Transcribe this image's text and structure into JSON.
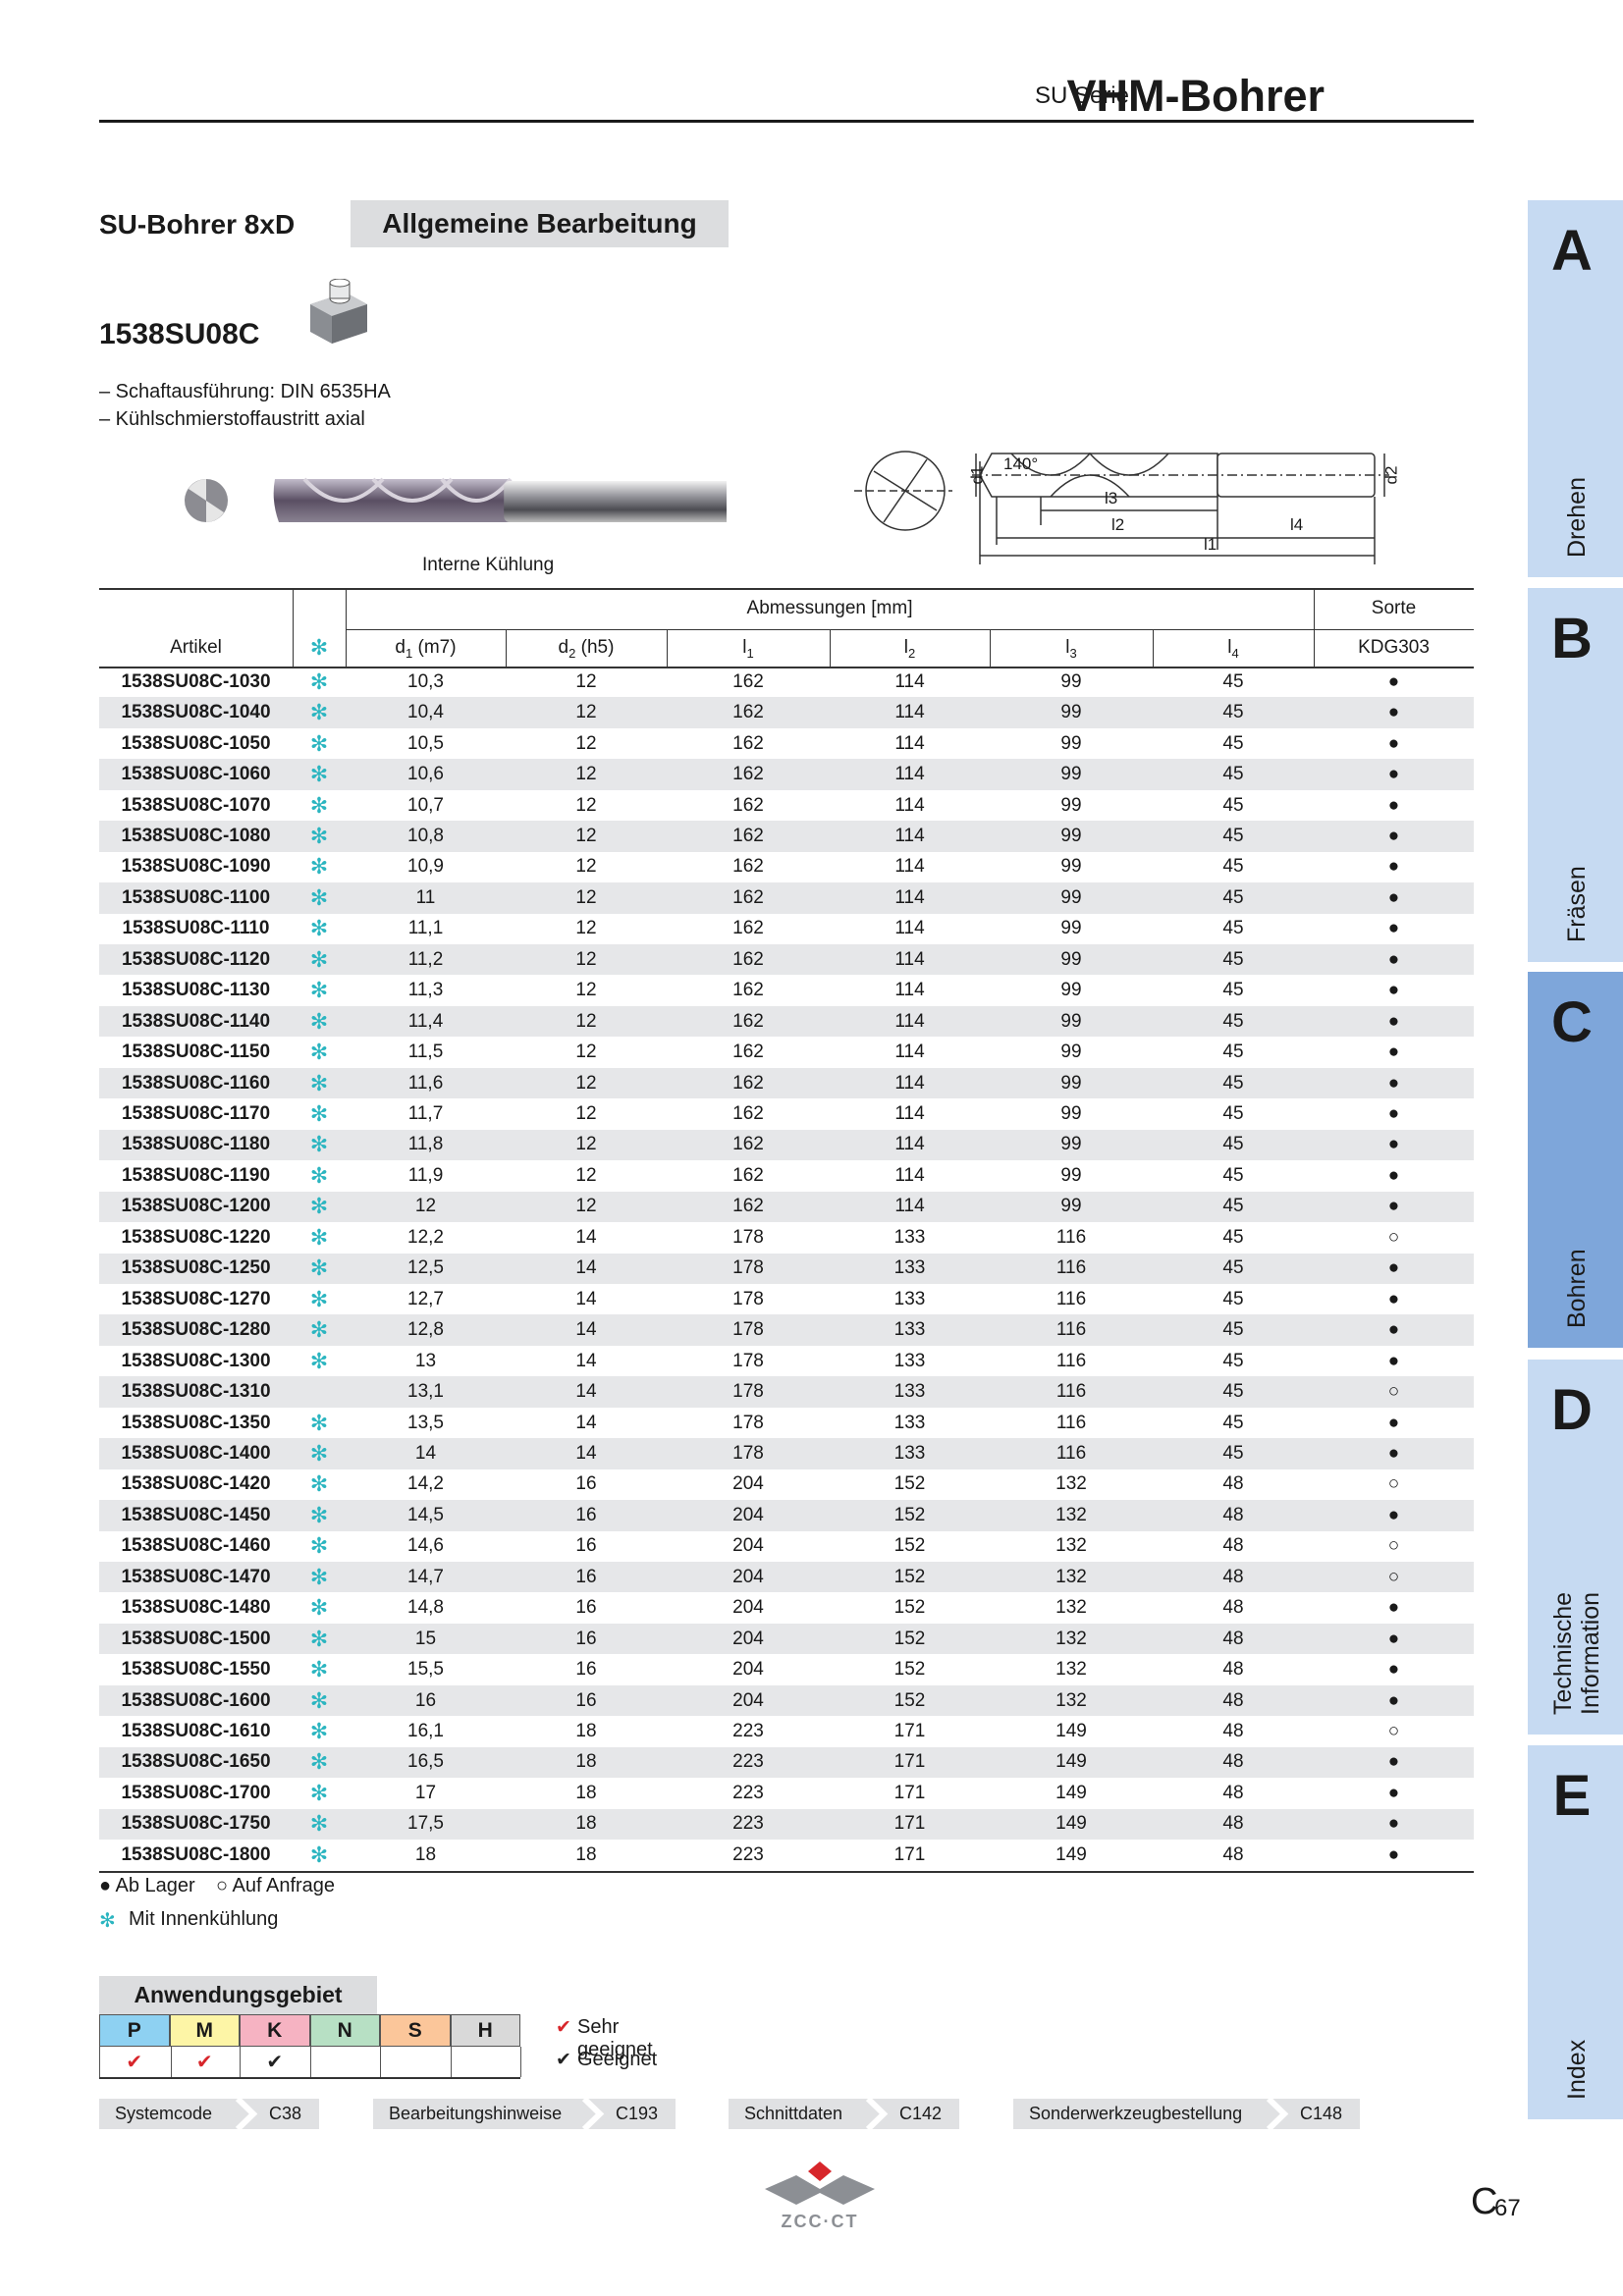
{
  "header": {
    "series": "SU Serie",
    "title": "VHM-Bohrer"
  },
  "section": {
    "title": "SU-Bohrer 8xD",
    "tag": "Allgemeine Bearbeitung"
  },
  "product": {
    "code": "1538SU08C",
    "features": [
      "– Schaftausführung: DIN 6535HA",
      "– Kühlschmierstoffaustritt axial"
    ],
    "image_caption": "Interne Kühlung"
  },
  "diagram": {
    "labels": {
      "d1": "d1",
      "angle": "140°",
      "d2": "d2",
      "l1": "l1",
      "l2": "l2",
      "l3": "l3",
      "l4": "l4"
    }
  },
  "table": {
    "group_header": "Abmessungen [mm]",
    "grade_header": "Sorte",
    "article_header": "Artikel",
    "coolant_symbol": "✻",
    "columns": [
      {
        "symbol": "d",
        "index": "1",
        "note": " (m7)"
      },
      {
        "symbol": "d",
        "index": "2",
        "note": " (h5)"
      },
      {
        "symbol": "l",
        "index": "1"
      },
      {
        "symbol": "l",
        "index": "2"
      },
      {
        "symbol": "l",
        "index": "3"
      },
      {
        "symbol": "l",
        "index": "4"
      }
    ],
    "grade": "KDG303",
    "rows": [
      {
        "article": "1538SU08C-1030",
        "coolant": true,
        "values": [
          "10,3",
          "12",
          "162",
          "114",
          "99",
          "45",
          "●"
        ]
      },
      {
        "article": "1538SU08C-1040",
        "coolant": true,
        "values": [
          "10,4",
          "12",
          "162",
          "114",
          "99",
          "45",
          "●"
        ]
      },
      {
        "article": "1538SU08C-1050",
        "coolant": true,
        "values": [
          "10,5",
          "12",
          "162",
          "114",
          "99",
          "45",
          "●"
        ]
      },
      {
        "article": "1538SU08C-1060",
        "coolant": true,
        "values": [
          "10,6",
          "12",
          "162",
          "114",
          "99",
          "45",
          "●"
        ]
      },
      {
        "article": "1538SU08C-1070",
        "coolant": true,
        "values": [
          "10,7",
          "12",
          "162",
          "114",
          "99",
          "45",
          "●"
        ]
      },
      {
        "article": "1538SU08C-1080",
        "coolant": true,
        "values": [
          "10,8",
          "12",
          "162",
          "114",
          "99",
          "45",
          "●"
        ]
      },
      {
        "article": "1538SU08C-1090",
        "coolant": true,
        "values": [
          "10,9",
          "12",
          "162",
          "114",
          "99",
          "45",
          "●"
        ]
      },
      {
        "article": "1538SU08C-1100",
        "coolant": true,
        "values": [
          "11",
          "12",
          "162",
          "114",
          "99",
          "45",
          "●"
        ]
      },
      {
        "article": "1538SU08C-1110",
        "coolant": true,
        "values": [
          "11,1",
          "12",
          "162",
          "114",
          "99",
          "45",
          "●"
        ]
      },
      {
        "article": "1538SU08C-1120",
        "coolant": true,
        "values": [
          "11,2",
          "12",
          "162",
          "114",
          "99",
          "45",
          "●"
        ]
      },
      {
        "article": "1538SU08C-1130",
        "coolant": true,
        "values": [
          "11,3",
          "12",
          "162",
          "114",
          "99",
          "45",
          "●"
        ]
      },
      {
        "article": "1538SU08C-1140",
        "coolant": true,
        "values": [
          "11,4",
          "12",
          "162",
          "114",
          "99",
          "45",
          "●"
        ]
      },
      {
        "article": "1538SU08C-1150",
        "coolant": true,
        "values": [
          "11,5",
          "12",
          "162",
          "114",
          "99",
          "45",
          "●"
        ]
      },
      {
        "article": "1538SU08C-1160",
        "coolant": true,
        "values": [
          "11,6",
          "12",
          "162",
          "114",
          "99",
          "45",
          "●"
        ]
      },
      {
        "article": "1538SU08C-1170",
        "coolant": true,
        "values": [
          "11,7",
          "12",
          "162",
          "114",
          "99",
          "45",
          "●"
        ]
      },
      {
        "article": "1538SU08C-1180",
        "coolant": true,
        "values": [
          "11,8",
          "12",
          "162",
          "114",
          "99",
          "45",
          "●"
        ]
      },
      {
        "article": "1538SU08C-1190",
        "coolant": true,
        "values": [
          "11,9",
          "12",
          "162",
          "114",
          "99",
          "45",
          "●"
        ]
      },
      {
        "article": "1538SU08C-1200",
        "coolant": true,
        "values": [
          "12",
          "12",
          "162",
          "114",
          "99",
          "45",
          "●"
        ]
      },
      {
        "article": "1538SU08C-1220",
        "coolant": true,
        "values": [
          "12,2",
          "14",
          "178",
          "133",
          "116",
          "45",
          "○"
        ]
      },
      {
        "article": "1538SU08C-1250",
        "coolant": true,
        "values": [
          "12,5",
          "14",
          "178",
          "133",
          "116",
          "45",
          "●"
        ]
      },
      {
        "article": "1538SU08C-1270",
        "coolant": true,
        "values": [
          "12,7",
          "14",
          "178",
          "133",
          "116",
          "45",
          "●"
        ]
      },
      {
        "article": "1538SU08C-1280",
        "coolant": true,
        "values": [
          "12,8",
          "14",
          "178",
          "133",
          "116",
          "45",
          "●"
        ]
      },
      {
        "article": "1538SU08C-1300",
        "coolant": true,
        "values": [
          "13",
          "14",
          "178",
          "133",
          "116",
          "45",
          "●"
        ]
      },
      {
        "article": "1538SU08C-1310",
        "coolant": false,
        "values": [
          "13,1",
          "14",
          "178",
          "133",
          "116",
          "45",
          "○"
        ]
      },
      {
        "article": "1538SU08C-1350",
        "coolant": true,
        "values": [
          "13,5",
          "14",
          "178",
          "133",
          "116",
          "45",
          "●"
        ]
      },
      {
        "article": "1538SU08C-1400",
        "coolant": true,
        "values": [
          "14",
          "14",
          "178",
          "133",
          "116",
          "45",
          "●"
        ]
      },
      {
        "article": "1538SU08C-1420",
        "coolant": true,
        "values": [
          "14,2",
          "16",
          "204",
          "152",
          "132",
          "48",
          "○"
        ]
      },
      {
        "article": "1538SU08C-1450",
        "coolant": true,
        "values": [
          "14,5",
          "16",
          "204",
          "152",
          "132",
          "48",
          "●"
        ]
      },
      {
        "article": "1538SU08C-1460",
        "coolant": true,
        "values": [
          "14,6",
          "16",
          "204",
          "152",
          "132",
          "48",
          "○"
        ]
      },
      {
        "article": "1538SU08C-1470",
        "coolant": true,
        "values": [
          "14,7",
          "16",
          "204",
          "152",
          "132",
          "48",
          "○"
        ]
      },
      {
        "article": "1538SU08C-1480",
        "coolant": true,
        "values": [
          "14,8",
          "16",
          "204",
          "152",
          "132",
          "48",
          "●"
        ]
      },
      {
        "article": "1538SU08C-1500",
        "coolant": true,
        "values": [
          "15",
          "16",
          "204",
          "152",
          "132",
          "48",
          "●"
        ]
      },
      {
        "article": "1538SU08C-1550",
        "coolant": true,
        "values": [
          "15,5",
          "16",
          "204",
          "152",
          "132",
          "48",
          "●"
        ]
      },
      {
        "article": "1538SU08C-1600",
        "coolant": true,
        "values": [
          "16",
          "16",
          "204",
          "152",
          "132",
          "48",
          "●"
        ]
      },
      {
        "article": "1538SU08C-1610",
        "coolant": true,
        "values": [
          "16,1",
          "18",
          "223",
          "171",
          "149",
          "48",
          "○"
        ]
      },
      {
        "article": "1538SU08C-1650",
        "coolant": true,
        "values": [
          "16,5",
          "18",
          "223",
          "171",
          "149",
          "48",
          "●"
        ]
      },
      {
        "article": "1538SU08C-1700",
        "coolant": true,
        "values": [
          "17",
          "18",
          "223",
          "171",
          "149",
          "48",
          "●"
        ]
      },
      {
        "article": "1538SU08C-1750",
        "coolant": true,
        "values": [
          "17,5",
          "18",
          "223",
          "171",
          "149",
          "48",
          "●"
        ]
      },
      {
        "article": "1538SU08C-1800",
        "coolant": true,
        "values": [
          "18",
          "18",
          "223",
          "171",
          "149",
          "48",
          "●"
        ]
      }
    ]
  },
  "legend": {
    "stock": "● Ab Lager",
    "request": "○ Auf Anfrage",
    "coolant": "Mit Innenkühlung"
  },
  "application": {
    "title": "Anwendungsgebiet",
    "materials": [
      {
        "label": "P",
        "color": "#8ed1f2"
      },
      {
        "label": "M",
        "color": "#fdf5a6"
      },
      {
        "label": "K",
        "color": "#f6b3c2"
      },
      {
        "label": "N",
        "color": "#b7e0c4"
      },
      {
        "label": "S",
        "color": "#fbc69a"
      },
      {
        "label": "H",
        "color": "#d9d9d9"
      }
    ],
    "ratings": [
      {
        "symbol": "✔",
        "color": "#d7262b"
      },
      {
        "symbol": "✔",
        "color": "#d7262b"
      },
      {
        "symbol": "✔",
        "color": "#222222"
      }
    ],
    "legend": [
      {
        "symbol": "✔",
        "color": "#d7262b",
        "text": "Sehr geeignet"
      },
      {
        "symbol": "✔",
        "color": "#222222",
        "text": "Geeignet"
      }
    ]
  },
  "nav": [
    {
      "label": "Systemcode",
      "ref": "C38"
    },
    {
      "label": "Bearbeitungshinweise",
      "ref": "C193"
    },
    {
      "label": "Schnittdaten",
      "ref": "C142"
    },
    {
      "label": "Sonderwerkzeugbestellung",
      "ref": "C148"
    }
  ],
  "footer": {
    "logo": "ZCC·CT",
    "page_letter": "C",
    "page_number": "67"
  },
  "tabs": [
    {
      "letter": "A",
      "label": "Drehen"
    },
    {
      "letter": "B",
      "label": "Fräsen"
    },
    {
      "letter": "C",
      "label": "Bohren",
      "active": true
    },
    {
      "letter": "D",
      "label": "Technische Information"
    },
    {
      "letter": "E",
      "label": "Index"
    }
  ]
}
